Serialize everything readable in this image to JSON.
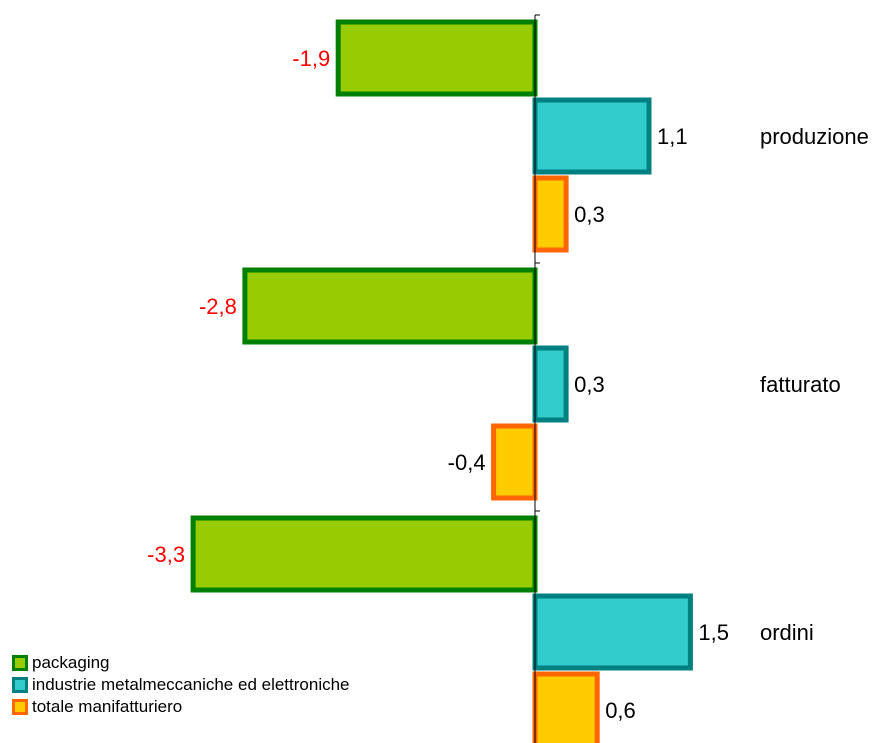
{
  "chart_data": {
    "type": "bar",
    "orientation": "horizontal",
    "categories": [
      "produzione",
      "fatturato",
      "ordini"
    ],
    "series": [
      {
        "name": "packaging",
        "values": [
          -1.9,
          -2.8,
          -3.3
        ],
        "fill": "#99CC00",
        "stroke": "#008000"
      },
      {
        "name": "industrie metalmeccaniche ed elettroniche",
        "values": [
          1.1,
          0.3,
          1.5
        ],
        "fill": "#33CCCC",
        "stroke": "#008080"
      },
      {
        "name": "totale manifatturiero",
        "values": [
          0.3,
          -0.4,
          0.6
        ],
        "fill": "#FFCC00",
        "stroke": "#FF6600"
      }
    ],
    "value_labels": [
      [
        "-1,9",
        "-2,8",
        "-3,3"
      ],
      [
        "1,1",
        "0,3",
        "1,5"
      ],
      [
        "0,3",
        "-0,4",
        "0,6"
      ]
    ],
    "value_label_colors": [
      "#FF0000",
      "#000000",
      "#000000"
    ],
    "xlim": [
      -3.3,
      1.5
    ],
    "legend_position": "bottom-left",
    "grid": false
  }
}
